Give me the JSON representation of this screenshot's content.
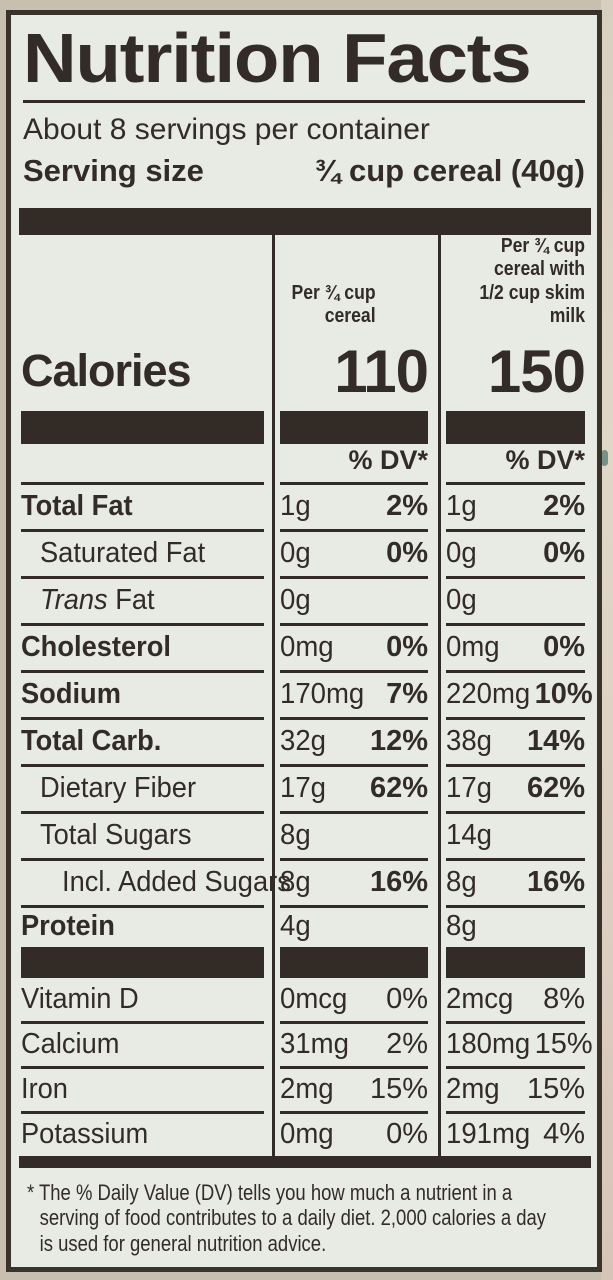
{
  "background": {
    "outer_color": "#c9bfb0",
    "right_strip_color": "#dcd3c5",
    "ink_color": "#332c26",
    "label_bg_color": "#e8eae4"
  },
  "label": {
    "title": "Nutrition Facts",
    "servings_per_container": "About 8 servings per container",
    "serving_size": {
      "label": "Serving size",
      "value": "¾ cup cereal (40g)"
    },
    "column_headers": {
      "per_cereal": "Per ¾ cup\ncereal",
      "per_cereal_milk": "Per ¾ cup\ncereal with\n1/2 cup skim milk"
    },
    "calories": {
      "label": "Calories",
      "per_cereal": "110",
      "per_cereal_milk": "150"
    },
    "dv_header": "% DV*",
    "nutrient_rows": [
      {
        "name": "Total Fat",
        "bold": true,
        "indent": 0,
        "underline": true,
        "cereal": {
          "amount": "1g",
          "dv": "2%"
        },
        "milk": {
          "amount": "1g",
          "dv": "2%"
        }
      },
      {
        "name": "Saturated Fat",
        "bold": false,
        "indent": 1,
        "underline": true,
        "cereal": {
          "amount": "0g",
          "dv": "0%"
        },
        "milk": {
          "amount": "0g",
          "dv": "0%"
        }
      },
      {
        "name": "Trans Fat",
        "italic_prefix": "Trans",
        "bold": false,
        "indent": 1,
        "underline": true,
        "cereal": {
          "amount": "0g",
          "dv": ""
        },
        "milk": {
          "amount": "0g",
          "dv": ""
        }
      },
      {
        "name": "Cholesterol",
        "bold": true,
        "indent": 0,
        "underline": true,
        "cereal": {
          "amount": "0mg",
          "dv": "0%"
        },
        "milk": {
          "amount": "0mg",
          "dv": "0%"
        }
      },
      {
        "name": "Sodium",
        "bold": true,
        "indent": 0,
        "underline": true,
        "cereal": {
          "amount": "170mg",
          "dv": "7%"
        },
        "milk": {
          "amount": "220mg",
          "dv": "10%"
        }
      },
      {
        "name": "Total Carb.",
        "bold": true,
        "indent": 0,
        "underline": true,
        "cereal": {
          "amount": "32g",
          "dv": "12%"
        },
        "milk": {
          "amount": "38g",
          "dv": "14%"
        }
      },
      {
        "name": "Dietary Fiber",
        "bold": false,
        "indent": 1,
        "underline": true,
        "cereal": {
          "amount": "17g",
          "dv": "62%"
        },
        "milk": {
          "amount": "17g",
          "dv": "62%"
        }
      },
      {
        "name": "Total Sugars",
        "bold": false,
        "indent": 1,
        "underline": true,
        "cereal": {
          "amount": "8g",
          "dv": ""
        },
        "milk": {
          "amount": "14g",
          "dv": ""
        }
      },
      {
        "name": "Incl. Added Sugars",
        "bold": false,
        "indent": 2,
        "underline": true,
        "cereal": {
          "amount": "8g",
          "dv": "16%"
        },
        "milk": {
          "amount": "8g",
          "dv": "16%"
        }
      },
      {
        "name": "Protein",
        "bold": true,
        "indent": 0,
        "underline": false,
        "short": true,
        "cereal": {
          "amount": "4g",
          "dv": ""
        },
        "milk": {
          "amount": "8g",
          "dv": ""
        }
      }
    ],
    "micronutrient_rows": [
      {
        "name": "Vitamin D",
        "underline": true,
        "cereal": {
          "amount": "0mcg",
          "dv": "0%"
        },
        "milk": {
          "amount": "2mcg",
          "dv": "8%"
        }
      },
      {
        "name": "Calcium",
        "underline": true,
        "cereal": {
          "amount": "31mg",
          "dv": "2%"
        },
        "milk": {
          "amount": "180mg",
          "dv": "15%"
        }
      },
      {
        "name": "Iron",
        "underline": true,
        "cereal": {
          "amount": "2mg",
          "dv": "15%"
        },
        "milk": {
          "amount": "2mg",
          "dv": "15%"
        }
      },
      {
        "name": "Potassium",
        "underline": false,
        "last": true,
        "cereal": {
          "amount": "0mg",
          "dv": "0%"
        },
        "milk": {
          "amount": "191mg",
          "dv": "4%"
        }
      }
    ],
    "footnote": "* The % Daily Value (DV) tells you how much a nutrient in a\nserving of food contributes to a daily diet. 2,000 calories a day\nis used for general nutrition advice."
  }
}
